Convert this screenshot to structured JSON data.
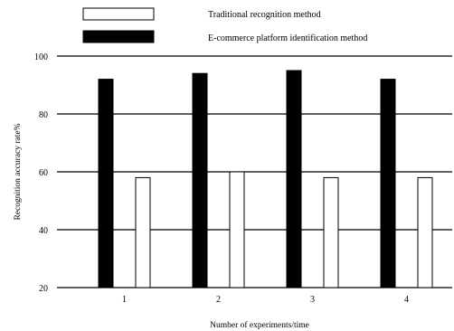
{
  "chart_data": {
    "type": "bar",
    "xlabel": "Number of experiments/time",
    "ylabel": "Recognition accuracy rate%",
    "categories": [
      "1",
      "2",
      "3",
      "4"
    ],
    "ylim": [
      20,
      100
    ],
    "yticks": [
      20,
      40,
      60,
      80,
      100
    ],
    "grid": "horizontal",
    "legend_position": "top",
    "series": [
      {
        "name": "Traditional recognition method",
        "color": "#ffffff",
        "values": [
          58,
          60,
          58,
          58
        ]
      },
      {
        "name": "E-commerce platform identification method",
        "color": "#000000",
        "values": [
          92,
          94,
          95,
          92
        ]
      }
    ]
  }
}
